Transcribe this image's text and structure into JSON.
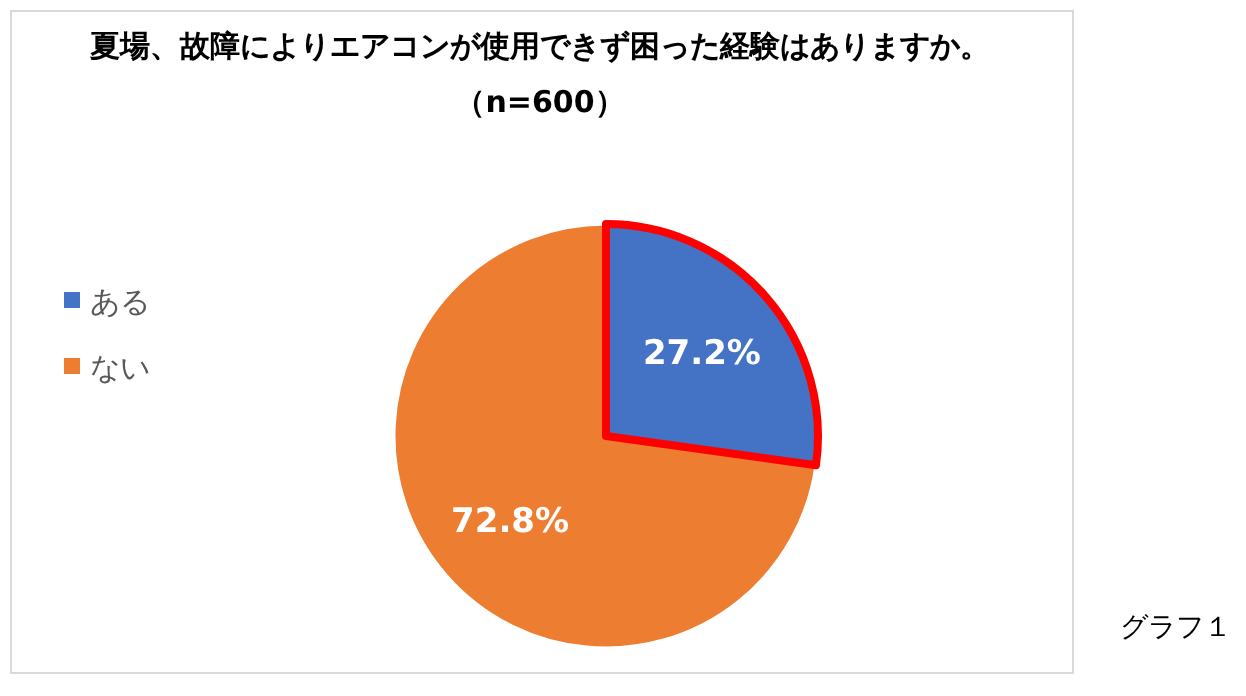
{
  "chart_data": {
    "type": "pie",
    "title": "夏場、故障によりエアコンが使用できず困った経験はありますか。",
    "subtitle": "（n=600）",
    "categories": [
      "ある",
      "ない"
    ],
    "values": [
      27.2,
      72.8
    ],
    "colors": [
      "#4472c4",
      "#ed7d31"
    ],
    "value_labels": [
      "27.2%",
      "72.8%"
    ],
    "legend": "left",
    "annotations": [
      "グラフ１"
    ]
  }
}
